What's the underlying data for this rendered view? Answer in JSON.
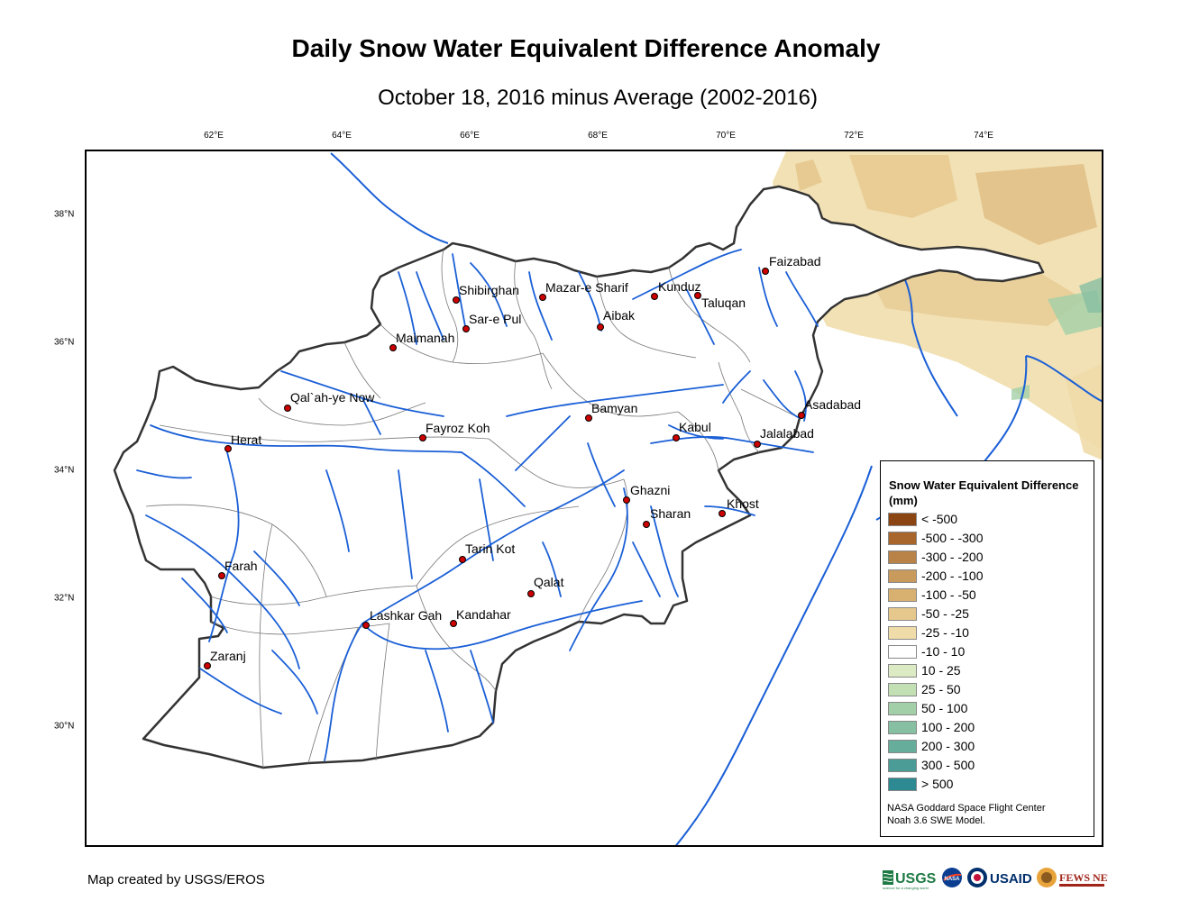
{
  "title": "Daily Snow Water Equivalent Difference Anomaly",
  "subtitle": "October 18, 2016 minus Average (2002-2016)",
  "lon_ticks": [
    "62°E",
    "64°E",
    "66°E",
    "68°E",
    "70°E",
    "72°E",
    "74°E"
  ],
  "lat_ticks": [
    "38°N",
    "36°N",
    "34°N",
    "32°N",
    "30°N"
  ],
  "cities": [
    {
      "name": "Faizabad"
    },
    {
      "name": "Shibirghan"
    },
    {
      "name": "Mazar-e Sharif"
    },
    {
      "name": "Kunduz"
    },
    {
      "name": "Taluqan"
    },
    {
      "name": "Sar-e Pul"
    },
    {
      "name": "Aibak"
    },
    {
      "name": "Maimanah"
    },
    {
      "name": "Qal`ah-ye Now"
    },
    {
      "name": "Bamyan"
    },
    {
      "name": "Asadabad"
    },
    {
      "name": "Kabul"
    },
    {
      "name": "Fayroz Koh"
    },
    {
      "name": "Jalalabad"
    },
    {
      "name": "Herat"
    },
    {
      "name": "Ghazni"
    },
    {
      "name": "Khost"
    },
    {
      "name": "Sharan"
    },
    {
      "name": "Tarin Kot"
    },
    {
      "name": "Farah"
    },
    {
      "name": "Qalat"
    },
    {
      "name": "Lashkar Gah"
    },
    {
      "name": "Kandahar"
    },
    {
      "name": "Zaranj"
    }
  ],
  "legend": {
    "title": "Snow Water Equivalent Difference (mm)",
    "items": [
      {
        "label": "< -500",
        "color": "#8b4513"
      },
      {
        "label": "-500 - -300",
        "color": "#a8652c"
      },
      {
        "label": "-300 - -200",
        "color": "#b98247"
      },
      {
        "label": "-200 - -100",
        "color": "#c89a5c"
      },
      {
        "label": "-100 - -50",
        "color": "#d8b171"
      },
      {
        "label": "-50 - -25",
        "color": "#e6c88d"
      },
      {
        "label": "-25 - -10",
        "color": "#f0dca8"
      },
      {
        "label": "-10 - 10",
        "color": "#ffffff"
      },
      {
        "label": "10 - 25",
        "color": "#dcebc4"
      },
      {
        "label": "25 - 50",
        "color": "#c3e0b5"
      },
      {
        "label": "50 - 100",
        "color": "#a3cfa8"
      },
      {
        "label": "100 - 200",
        "color": "#86bfa2"
      },
      {
        "label": "200 - 300",
        "color": "#66ad9b"
      },
      {
        "label": "300 - 500",
        "color": "#4b9b97"
      },
      {
        "label": "> 500",
        "color": "#2e8a92"
      }
    ],
    "credit_line1": "NASA Goddard Space Flight Center",
    "credit_line2": "Noah 3.6 SWE Model."
  },
  "footer": {
    "created_by": "Map created by USGS/EROS",
    "logo_usgs": "USGS",
    "logo_usgs_tag": "science for a changing world",
    "logo_nasa": "NASA",
    "logo_usaid": "USAID",
    "logo_fewsnet": "FEWS NET"
  },
  "colors": {
    "river": "#1a5fd6",
    "border": "#333333",
    "city_marker": "#cc0000"
  }
}
